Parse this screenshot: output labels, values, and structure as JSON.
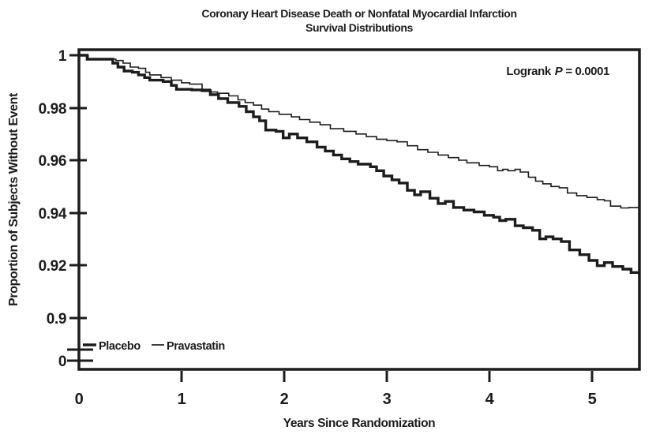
{
  "title": {
    "line1": "Coronary Heart Disease Death or Nonfatal Myocardial Infarction",
    "line2": "Survival Distributions"
  },
  "annotation": {
    "prefix": "Logrank",
    "p_symbol": "P",
    "suffix": "= 0.0001",
    "full_text": "Logrank P = 0.0001"
  },
  "legend": {
    "items": [
      {
        "label": "Placebo"
      },
      {
        "label": "Pravastatin"
      }
    ]
  },
  "colors": {
    "line": "#1c1c1c",
    "background": "#ffffff"
  },
  "chart_data": {
    "type": "line",
    "subtype": "kaplan-meier-step",
    "title": "Coronary Heart Disease Death or Nonfatal Myocardial Infarction",
    "subtitle": "Survival Distributions",
    "xlabel": "Years Since Randomization",
    "ylabel": "Proportion of Subjects Without Event",
    "annotation": "Logrank P = 0.0001",
    "xlim": [
      0,
      5.46
    ],
    "ylim": [
      0.9,
      1.0
    ],
    "axis_break": "y-axis broken between 0.9 and 0",
    "grid": false,
    "legend_position": "inside bottom-left",
    "x_ticks": [
      0,
      1,
      2,
      3,
      4,
      5
    ],
    "y_ticks": [
      1,
      0.98,
      0.96,
      0.94,
      0.92,
      0.9,
      0
    ],
    "x_tick_labels": [
      "0",
      "1",
      "2",
      "3",
      "4",
      "5"
    ],
    "y_tick_labels": [
      "1",
      "0.98",
      "0.96",
      "0.94",
      "0.92",
      "0.9",
      "0"
    ],
    "series": [
      {
        "name": "Placebo",
        "line_weight": "thick",
        "end_value": 0.916,
        "points": [
          [
            0,
            1.0
          ],
          [
            0.05,
            1.0
          ],
          [
            0.08,
            0.9985
          ],
          [
            0.28,
            0.9985
          ],
          [
            0.33,
            0.997
          ],
          [
            0.38,
            0.9955
          ],
          [
            0.44,
            0.994
          ],
          [
            0.52,
            0.9935
          ],
          [
            0.58,
            0.9925
          ],
          [
            0.64,
            0.9915
          ],
          [
            0.69,
            0.9905
          ],
          [
            0.82,
            0.99
          ],
          [
            0.9,
            0.9885
          ],
          [
            0.95,
            0.987
          ],
          [
            1.1,
            0.9868
          ],
          [
            1.2,
            0.9865
          ],
          [
            1.28,
            0.985
          ],
          [
            1.36,
            0.9835
          ],
          [
            1.45,
            0.982
          ],
          [
            1.56,
            0.9805
          ],
          [
            1.63,
            0.9785
          ],
          [
            1.7,
            0.9765
          ],
          [
            1.76,
            0.975
          ],
          [
            1.82,
            0.9715
          ],
          [
            1.92,
            0.971
          ],
          [
            1.99,
            0.9685
          ],
          [
            2.05,
            0.97
          ],
          [
            2.13,
            0.9685
          ],
          [
            2.22,
            0.967
          ],
          [
            2.32,
            0.965
          ],
          [
            2.4,
            0.9635
          ],
          [
            2.48,
            0.962
          ],
          [
            2.56,
            0.9605
          ],
          [
            2.64,
            0.9595
          ],
          [
            2.72,
            0.9585
          ],
          [
            2.84,
            0.9575
          ],
          [
            2.9,
            0.956
          ],
          [
            2.97,
            0.954
          ],
          [
            3.05,
            0.9525
          ],
          [
            3.12,
            0.9513
          ],
          [
            3.2,
            0.9485
          ],
          [
            3.27,
            0.9468
          ],
          [
            3.33,
            0.948
          ],
          [
            3.42,
            0.9455
          ],
          [
            3.5,
            0.9435
          ],
          [
            3.57,
            0.9443
          ],
          [
            3.65,
            0.942
          ],
          [
            3.75,
            0.941
          ],
          [
            3.85,
            0.9403
          ],
          [
            3.95,
            0.939
          ],
          [
            4.04,
            0.9383
          ],
          [
            4.1,
            0.937
          ],
          [
            4.16,
            0.9375
          ],
          [
            4.25,
            0.935
          ],
          [
            4.33,
            0.9343
          ],
          [
            4.42,
            0.9333
          ],
          [
            4.49,
            0.93
          ],
          [
            4.55,
            0.9308
          ],
          [
            4.62,
            0.93
          ],
          [
            4.7,
            0.929
          ],
          [
            4.78,
            0.9258
          ],
          [
            4.88,
            0.924
          ],
          [
            4.97,
            0.9218
          ],
          [
            5.05,
            0.9198
          ],
          [
            5.12,
            0.921
          ],
          [
            5.2,
            0.9195
          ],
          [
            5.3,
            0.9185
          ],
          [
            5.38,
            0.9172
          ],
          [
            5.46,
            0.9163
          ]
        ]
      },
      {
        "name": "Pravastatin",
        "line_weight": "thin",
        "end_value": 0.943,
        "points": [
          [
            0,
            1.0
          ],
          [
            0.05,
            1.0
          ],
          [
            0.09,
            0.9985
          ],
          [
            0.3,
            0.9985
          ],
          [
            0.36,
            0.998
          ],
          [
            0.43,
            0.997
          ],
          [
            0.5,
            0.9955
          ],
          [
            0.58,
            0.995
          ],
          [
            0.65,
            0.9935
          ],
          [
            0.69,
            0.9925
          ],
          [
            0.8,
            0.9915
          ],
          [
            0.9,
            0.9905
          ],
          [
            1.0,
            0.9895
          ],
          [
            1.08,
            0.989
          ],
          [
            1.2,
            0.987
          ],
          [
            1.28,
            0.986
          ],
          [
            1.35,
            0.9855
          ],
          [
            1.46,
            0.9845
          ],
          [
            1.55,
            0.983
          ],
          [
            1.62,
            0.982
          ],
          [
            1.7,
            0.981
          ],
          [
            1.78,
            0.9795
          ],
          [
            1.85,
            0.9785
          ],
          [
            1.95,
            0.9775
          ],
          [
            2.07,
            0.9765
          ],
          [
            2.15,
            0.9755
          ],
          [
            2.25,
            0.9745
          ],
          [
            2.35,
            0.9735
          ],
          [
            2.45,
            0.972
          ],
          [
            2.58,
            0.971
          ],
          [
            2.7,
            0.97
          ],
          [
            2.8,
            0.969
          ],
          [
            2.9,
            0.968
          ],
          [
            3.0,
            0.9675
          ],
          [
            3.1,
            0.967
          ],
          [
            3.2,
            0.9655
          ],
          [
            3.3,
            0.964
          ],
          [
            3.4,
            0.963
          ],
          [
            3.5,
            0.962
          ],
          [
            3.6,
            0.961
          ],
          [
            3.7,
            0.96
          ],
          [
            3.78,
            0.959
          ],
          [
            3.9,
            0.958
          ],
          [
            4.0,
            0.9575
          ],
          [
            4.08,
            0.956
          ],
          [
            4.13,
            0.9565
          ],
          [
            4.18,
            0.956
          ],
          [
            4.25,
            0.9565
          ],
          [
            4.3,
            0.9555
          ],
          [
            4.38,
            0.9535
          ],
          [
            4.45,
            0.952
          ],
          [
            4.52,
            0.951
          ],
          [
            4.6,
            0.95
          ],
          [
            4.68,
            0.9495
          ],
          [
            4.76,
            0.9475
          ],
          [
            4.85,
            0.9465
          ],
          [
            4.95,
            0.9458
          ],
          [
            5.05,
            0.945
          ],
          [
            5.12,
            0.9445
          ],
          [
            5.18,
            0.9425
          ],
          [
            5.28,
            0.9418
          ],
          [
            5.36,
            0.942
          ],
          [
            5.46,
            0.9428
          ]
        ]
      }
    ]
  }
}
